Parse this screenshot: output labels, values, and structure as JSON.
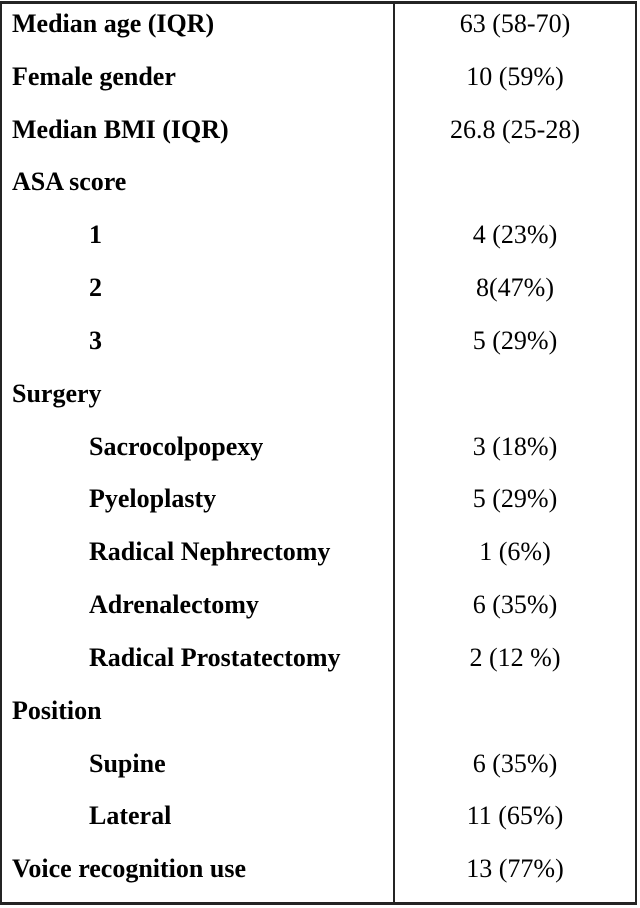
{
  "table": {
    "name": "patient-characteristics-table",
    "columns": [
      "characteristic",
      "value"
    ],
    "rows": [
      {
        "label": "Median age (IQR)",
        "value": "63 (58-70)",
        "indent": false
      },
      {
        "label": "Female gender",
        "value": "10 (59%)",
        "indent": false
      },
      {
        "label": "Median BMI (IQR)",
        "value": "26.8 (25-28)",
        "indent": false
      },
      {
        "label": "ASA score",
        "value": "",
        "indent": false
      },
      {
        "label": "1",
        "value": "4 (23%)",
        "indent": true
      },
      {
        "label": "2",
        "value": "8(47%)",
        "indent": true
      },
      {
        "label": "3",
        "value": "5 (29%)",
        "indent": true
      },
      {
        "label": "Surgery",
        "value": "",
        "indent": false
      },
      {
        "label": "Sacrocolpopexy",
        "value": "3 (18%)",
        "indent": true
      },
      {
        "label": "Pyeloplasty",
        "value": "5 (29%)",
        "indent": true
      },
      {
        "label": "Radical Nephrectomy",
        "value": "1 (6%)",
        "indent": true
      },
      {
        "label": "Adrenalectomy",
        "value": "6 (35%)",
        "indent": true
      },
      {
        "label": "Radical Prostatectomy",
        "value": "2 (12 %)",
        "indent": true
      },
      {
        "label": "Position",
        "value": "",
        "indent": false
      },
      {
        "label": "Supine",
        "value": "6 (35%)",
        "indent": true
      },
      {
        "label": "Lateral",
        "value": "11 (65%)",
        "indent": true
      },
      {
        "label": "Voice recognition use",
        "value": "13 (77%)",
        "indent": false
      }
    ],
    "colors": {
      "border": "#242424",
      "text": "#000000",
      "background": "#ffffff"
    }
  }
}
